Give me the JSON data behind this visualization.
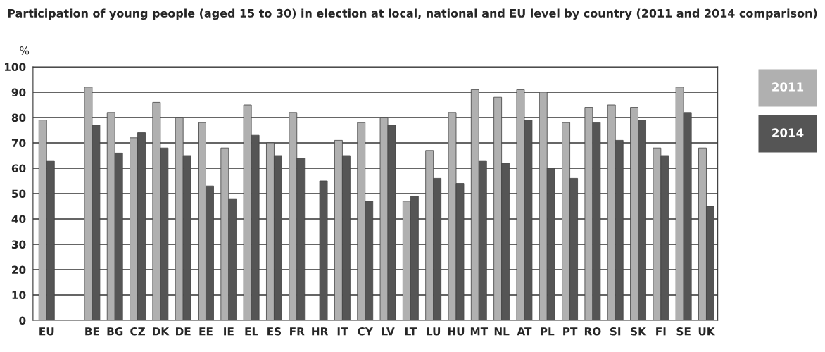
{
  "chart_data": {
    "type": "bar",
    "title": "Participation of young people (aged 15 to 30) in election at local, national and EU level by country (2011 and 2014 comparison)",
    "ylabel": "%",
    "categories": [
      "EU",
      null,
      "BE",
      "BG",
      "CZ",
      "DK",
      "DE",
      "EE",
      "IE",
      "EL",
      "ES",
      "FR",
      "HR",
      "IT",
      "CY",
      "LV",
      "LT",
      "LU",
      "HU",
      "MT",
      "NL",
      "AT",
      "PL",
      "PT",
      "RO",
      "SI",
      "SK",
      "FI",
      "SE",
      "UK"
    ],
    "series": [
      {
        "name": "2011",
        "color": "#b0b0b0",
        "values": [
          79,
          null,
          92,
          82,
          72,
          86,
          80,
          78,
          68,
          85,
          70,
          82,
          null,
          71,
          78,
          80,
          47,
          67,
          82,
          91,
          88,
          91,
          90,
          78,
          84,
          85,
          84,
          68,
          92,
          68
        ]
      },
      {
        "name": "2014",
        "color": "#555555",
        "values": [
          63,
          null,
          77,
          66,
          74,
          68,
          65,
          53,
          48,
          73,
          65,
          64,
          55,
          65,
          47,
          77,
          49,
          56,
          54,
          63,
          62,
          79,
          60,
          56,
          78,
          71,
          79,
          65,
          82,
          45
        ]
      }
    ],
    "ylim": [
      0,
      100
    ],
    "yticks": [
      0,
      10,
      20,
      30,
      40,
      50,
      60,
      70,
      80,
      90,
      100
    ],
    "grid": "y",
    "legend": "top right"
  }
}
